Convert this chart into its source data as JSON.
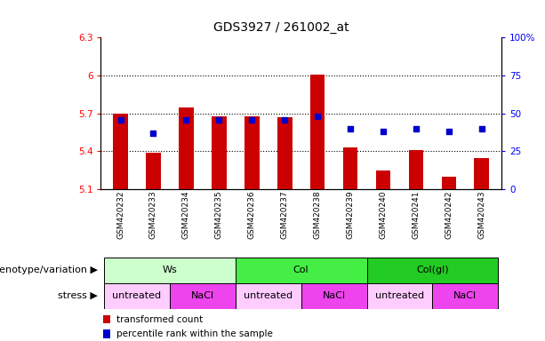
{
  "title": "GDS3927 / 261002_at",
  "samples": [
    "GSM420232",
    "GSM420233",
    "GSM420234",
    "GSM420235",
    "GSM420236",
    "GSM420237",
    "GSM420238",
    "GSM420239",
    "GSM420240",
    "GSM420241",
    "GSM420242",
    "GSM420243"
  ],
  "bar_values": [
    5.7,
    5.39,
    5.75,
    5.68,
    5.68,
    5.67,
    6.01,
    5.43,
    5.25,
    5.41,
    5.2,
    5.35
  ],
  "percentile_values": [
    46,
    37,
    46,
    46,
    46,
    46,
    48,
    40,
    38,
    40,
    38,
    40
  ],
  "bar_bottom": 5.1,
  "ylim_left": [
    5.1,
    6.3
  ],
  "ylim_right": [
    0,
    100
  ],
  "yticks_left": [
    5.1,
    5.4,
    5.7,
    6.0,
    6.3
  ],
  "yticks_right": [
    0,
    25,
    50,
    75,
    100
  ],
  "ytick_labels_left": [
    "5.1",
    "5.4",
    "5.7",
    "6",
    "6.3"
  ],
  "ytick_labels_right": [
    "0",
    "25",
    "50",
    "75",
    "100%"
  ],
  "hlines": [
    5.4,
    5.7,
    6.0
  ],
  "bar_color": "#cc0000",
  "percentile_color": "#0000cc",
  "plot_bg_color": "#ffffff",
  "genotype_groups": [
    {
      "label": "Ws",
      "start": 0,
      "end": 3,
      "color": "#ccffcc"
    },
    {
      "label": "Col",
      "start": 4,
      "end": 7,
      "color": "#44ee44"
    },
    {
      "label": "Col(gl)",
      "start": 8,
      "end": 11,
      "color": "#22cc22"
    }
  ],
  "stress_groups": [
    {
      "label": "untreated",
      "start": 0,
      "end": 1,
      "color": "#ffccff"
    },
    {
      "label": "NaCl",
      "start": 2,
      "end": 3,
      "color": "#ee44ee"
    },
    {
      "label": "untreated",
      "start": 4,
      "end": 5,
      "color": "#ffccff"
    },
    {
      "label": "NaCl",
      "start": 6,
      "end": 7,
      "color": "#ee44ee"
    },
    {
      "label": "untreated",
      "start": 8,
      "end": 9,
      "color": "#ffccff"
    },
    {
      "label": "NaCl",
      "start": 10,
      "end": 11,
      "color": "#ee44ee"
    }
  ],
  "legend_red_label": "transformed count",
  "legend_blue_label": "percentile rank within the sample",
  "genotype_label": "genotype/variation",
  "stress_label": "stress",
  "title_fontsize": 10,
  "tick_fontsize": 7.5,
  "label_fontsize": 8,
  "row_label_fontsize": 8
}
